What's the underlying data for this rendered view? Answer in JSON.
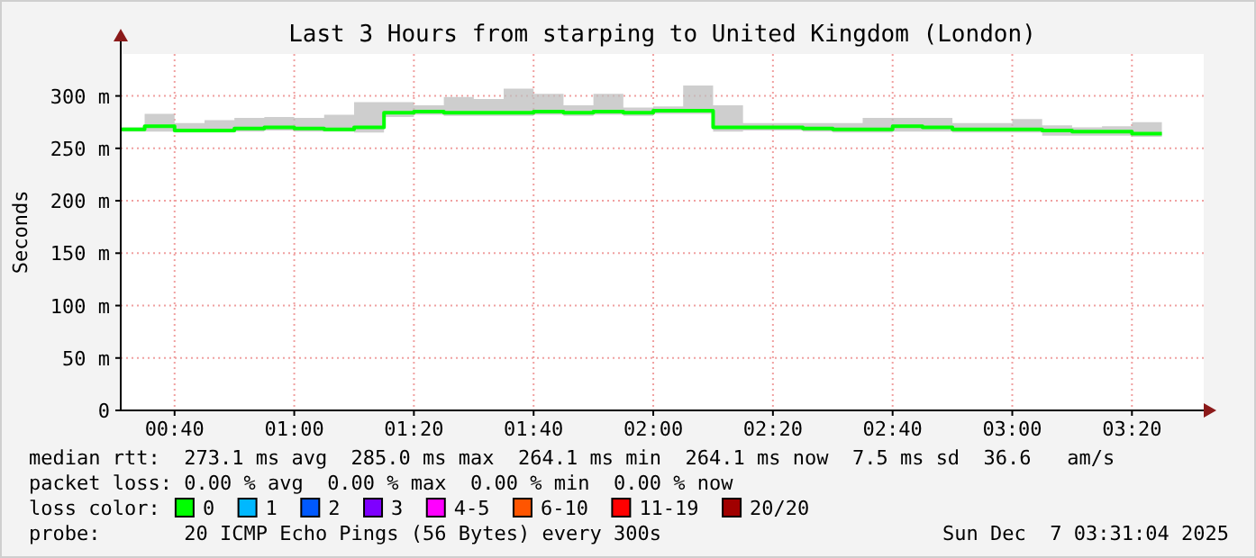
{
  "chart_data": {
    "type": "step",
    "title": "Last 3 Hours from starping to United Kingdom (London)",
    "ylabel": "Seconds",
    "legend_title": "loss color:",
    "legend": "bottom",
    "grid": true,
    "x": [
      0.5167,
      0.5833,
      0.6667,
      0.75,
      0.8333,
      0.9167,
      1,
      1.0833,
      1.1667,
      1.25,
      1.3333,
      1.4167,
      1.5,
      1.5833,
      1.6667,
      1.75,
      1.8333,
      1.9167,
      2,
      2.0833,
      2.1667,
      2.25,
      2.3333,
      2.4167,
      2.5,
      2.5833,
      2.6667,
      2.75,
      2.8333,
      2.9167,
      3,
      3.0833,
      3.1667,
      3.25,
      3.3333,
      3.4167
    ],
    "xlim": [
      0.5167,
      3.5333
    ],
    "xticks": [
      {
        "value": 0.6667,
        "label": "00:40"
      },
      {
        "value": 1,
        "label": "01:00"
      },
      {
        "value": 1.3333,
        "label": "01:20"
      },
      {
        "value": 1.6667,
        "label": "01:40"
      },
      {
        "value": 2,
        "label": "02:00"
      },
      {
        "value": 2.3333,
        "label": "02:20"
      },
      {
        "value": 2.6667,
        "label": "02:40"
      },
      {
        "value": 3,
        "label": "03:00"
      },
      {
        "value": 3.3333,
        "label": "03:20"
      }
    ],
    "ylim": [
      0,
      340
    ],
    "yticks": [
      0,
      {
        "value": 50,
        "label": "50 m"
      },
      {
        "value": 100,
        "label": "100 m"
      },
      {
        "value": 150,
        "label": "150 m"
      },
      {
        "value": 200,
        "label": "200 m"
      },
      {
        "value": 250,
        "label": "250 m"
      },
      {
        "value": 300,
        "label": "300 m"
      }
    ],
    "series": [
      {
        "name": "0",
        "color": "#00ff00",
        "values": [
          268,
          271,
          267,
          267,
          269,
          270,
          269,
          268,
          270,
          284,
          285,
          284,
          284,
          284,
          285,
          284,
          285,
          284,
          286,
          286,
          270,
          270,
          270,
          269,
          268,
          268,
          271,
          270,
          268,
          268,
          268,
          267,
          266,
          266,
          264,
          264
        ],
        "upper": [
          270,
          283,
          274,
          277,
          279,
          280,
          279,
          282,
          294,
          294,
          291,
          299,
          297,
          307,
          302,
          291,
          302,
          289,
          290,
          310,
          291,
          274,
          274,
          274,
          274,
          279,
          279,
          279,
          274,
          274,
          278,
          272,
          270,
          271,
          275,
          275
        ],
        "lower": [
          266,
          266,
          265,
          265,
          266,
          267,
          266,
          266,
          265,
          280,
          282,
          281,
          281,
          281,
          282,
          281,
          282,
          281,
          283,
          283,
          266,
          267,
          267,
          266,
          265,
          265,
          266,
          266,
          265,
          265,
          265,
          262,
          262,
          262,
          261,
          261
        ]
      },
      {
        "name": "1",
        "color": "#00b8ff",
        "values": [
          null,
          null,
          null,
          null,
          null,
          null,
          null,
          null,
          null,
          null,
          null,
          null,
          null,
          null,
          null,
          null,
          null,
          null,
          null,
          null,
          null,
          null,
          null,
          null,
          null,
          null,
          null,
          null,
          null,
          null,
          null,
          null,
          null,
          null,
          null,
          null
        ]
      },
      {
        "name": "2",
        "color": "#0059ff",
        "values": [
          null,
          null,
          null,
          null,
          null,
          null,
          null,
          null,
          null,
          null,
          null,
          null,
          null,
          null,
          null,
          null,
          null,
          null,
          null,
          null,
          null,
          null,
          null,
          null,
          null,
          null,
          null,
          null,
          null,
          null,
          null,
          null,
          null,
          null,
          null,
          null
        ]
      },
      {
        "name": "3",
        "color": "#7e00ff",
        "values": [
          null,
          null,
          null,
          null,
          null,
          null,
          null,
          null,
          null,
          null,
          null,
          null,
          null,
          null,
          null,
          null,
          null,
          null,
          null,
          null,
          null,
          null,
          null,
          null,
          null,
          null,
          null,
          null,
          null,
          null,
          null,
          null,
          null,
          null,
          null,
          null
        ]
      },
      {
        "name": "4-5",
        "color": "#ff00ff",
        "values": [
          null,
          null,
          null,
          null,
          null,
          null,
          null,
          null,
          null,
          null,
          null,
          null,
          null,
          null,
          null,
          null,
          null,
          null,
          null,
          null,
          null,
          null,
          null,
          null,
          null,
          null,
          null,
          null,
          null,
          null,
          null,
          null,
          null,
          null,
          null,
          null
        ]
      },
      {
        "name": "6-10",
        "color": "#ff5500",
        "values": [
          null,
          null,
          null,
          null,
          null,
          null,
          null,
          null,
          null,
          null,
          null,
          null,
          null,
          null,
          null,
          null,
          null,
          null,
          null,
          null,
          null,
          null,
          null,
          null,
          null,
          null,
          null,
          null,
          null,
          null,
          null,
          null,
          null,
          null,
          null,
          null
        ]
      },
      {
        "name": "11-19",
        "color": "#ff0000",
        "values": [
          null,
          null,
          null,
          null,
          null,
          null,
          null,
          null,
          null,
          null,
          null,
          null,
          null,
          null,
          null,
          null,
          null,
          null,
          null,
          null,
          null,
          null,
          null,
          null,
          null,
          null,
          null,
          null,
          null,
          null,
          null,
          null,
          null,
          null,
          null,
          null
        ]
      },
      {
        "name": "20/20",
        "color": "#a10000",
        "values": [
          null,
          null,
          null,
          null,
          null,
          null,
          null,
          null,
          null,
          null,
          null,
          null,
          null,
          null,
          null,
          null,
          null,
          null,
          null,
          null,
          null,
          null,
          null,
          null,
          null,
          null,
          null,
          null,
          null,
          null,
          null,
          null,
          null,
          null,
          null,
          null
        ]
      }
    ],
    "annotations": [
      "median rtt:  273.1 ms avg  285.0 ms max  264.1 ms min  264.1 ms now  7.5 ms sd  36.6   am/s",
      "packet loss: 0.00 % avg  0.00 % max  0.00 % min  0.00 % now",
      "probe:       20 ICMP Echo Pings (56 Bytes) every 300s",
      "Sun Dec  7 03:31:04 2025"
    ]
  }
}
